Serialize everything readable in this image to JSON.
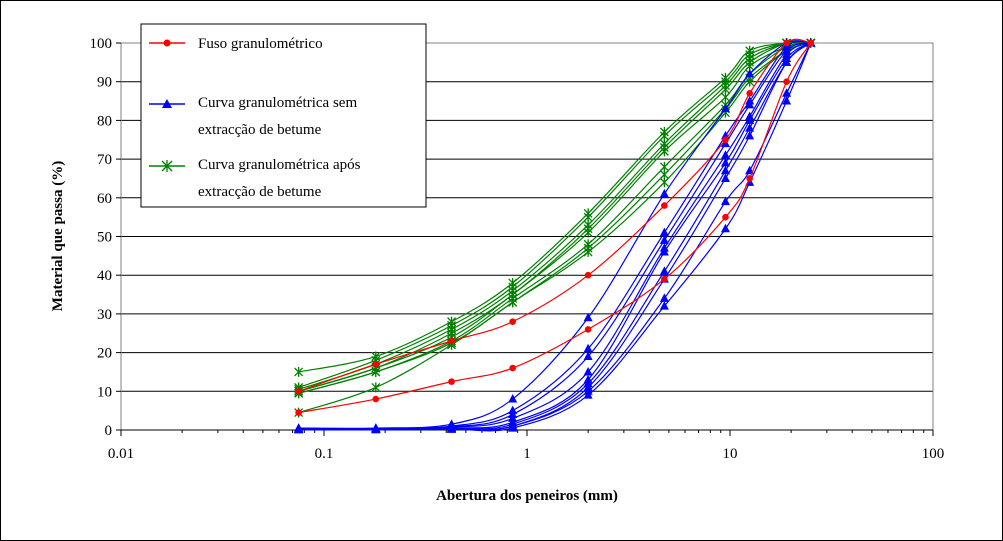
{
  "chart_data": {
    "type": "line",
    "x_scale": "log",
    "xlabel": "Abertura dos peneiros (mm)",
    "ylabel": "Material que passa (%)",
    "xlim": [
      0.01,
      100
    ],
    "ylim": [
      0,
      100
    ],
    "x_ticks": [
      "0.01",
      "0.1",
      "1",
      "10",
      "100"
    ],
    "y_ticks": [
      "0",
      "10",
      "20",
      "30",
      "40",
      "50",
      "60",
      "70",
      "80",
      "90",
      "100"
    ],
    "grid": "horizontal",
    "legend_position": "top-left",
    "x": [
      0.075,
      0.18,
      0.425,
      0.85,
      2.0,
      4.75,
      9.5,
      12.5,
      19.0,
      25.0
    ],
    "series": [
      {
        "name": "Fuso granulométrico",
        "color": "#ff0000",
        "marker": "circle",
        "curves": [
          [
            4.5,
            8,
            12.5,
            16,
            26,
            39,
            55,
            65,
            90,
            100
          ],
          [
            10,
            17,
            23,
            28,
            40,
            58,
            75,
            87,
            100,
            100
          ]
        ]
      },
      {
        "name": "Curva granulométrica sem extracção de betume",
        "color": "#0000ff",
        "marker": "triangle",
        "curves": [
          [
            0.5,
            0.5,
            1.5,
            8,
            29,
            61,
            83,
            92,
            100,
            100
          ],
          [
            0.3,
            0.3,
            1,
            5,
            21,
            51,
            76,
            85,
            99,
            100
          ],
          [
            0.2,
            0.3,
            0.8,
            4,
            19,
            49,
            74,
            84,
            98,
            100
          ],
          [
            0.2,
            0.2,
            0.7,
            3,
            15,
            47,
            71,
            81,
            97,
            100
          ],
          [
            0.1,
            0.2,
            0.5,
            2,
            13,
            46,
            69,
            80,
            96,
            100
          ],
          [
            0.1,
            0.1,
            0.4,
            1.5,
            12,
            41,
            67,
            78,
            95,
            100
          ],
          [
            0.1,
            0.1,
            0.3,
            1,
            11,
            39,
            65,
            76,
            95,
            100
          ],
          [
            0.1,
            0.1,
            0.2,
            1,
            10,
            34,
            59,
            67,
            87,
            100
          ],
          [
            0.1,
            0.1,
            0.2,
            0.5,
            9,
            32,
            52,
            64,
            85,
            100
          ]
        ]
      },
      {
        "name": "Curva granulométrica após extracção de betume",
        "color": "#008000",
        "marker": "star",
        "curves": [
          [
            15,
            19,
            28,
            38,
            56,
            77,
            91,
            98,
            100,
            100
          ],
          [
            11,
            18,
            27,
            37,
            55,
            76,
            90,
            97,
            100,
            100
          ],
          [
            10.5,
            17,
            26,
            36,
            53,
            74,
            89,
            96,
            100,
            100
          ],
          [
            10,
            16,
            25,
            35,
            52,
            73,
            88,
            95,
            100,
            100
          ],
          [
            10,
            16,
            24,
            35,
            51,
            72,
            86,
            94,
            99,
            100
          ],
          [
            9.5,
            15,
            23,
            34,
            48,
            68,
            84,
            92,
            99,
            100
          ],
          [
            9.5,
            15,
            22.5,
            33,
            47,
            66,
            83,
            91,
            98,
            100
          ],
          [
            4.5,
            11,
            22,
            33,
            46,
            64,
            82,
            90,
            98,
            100
          ]
        ]
      }
    ]
  }
}
